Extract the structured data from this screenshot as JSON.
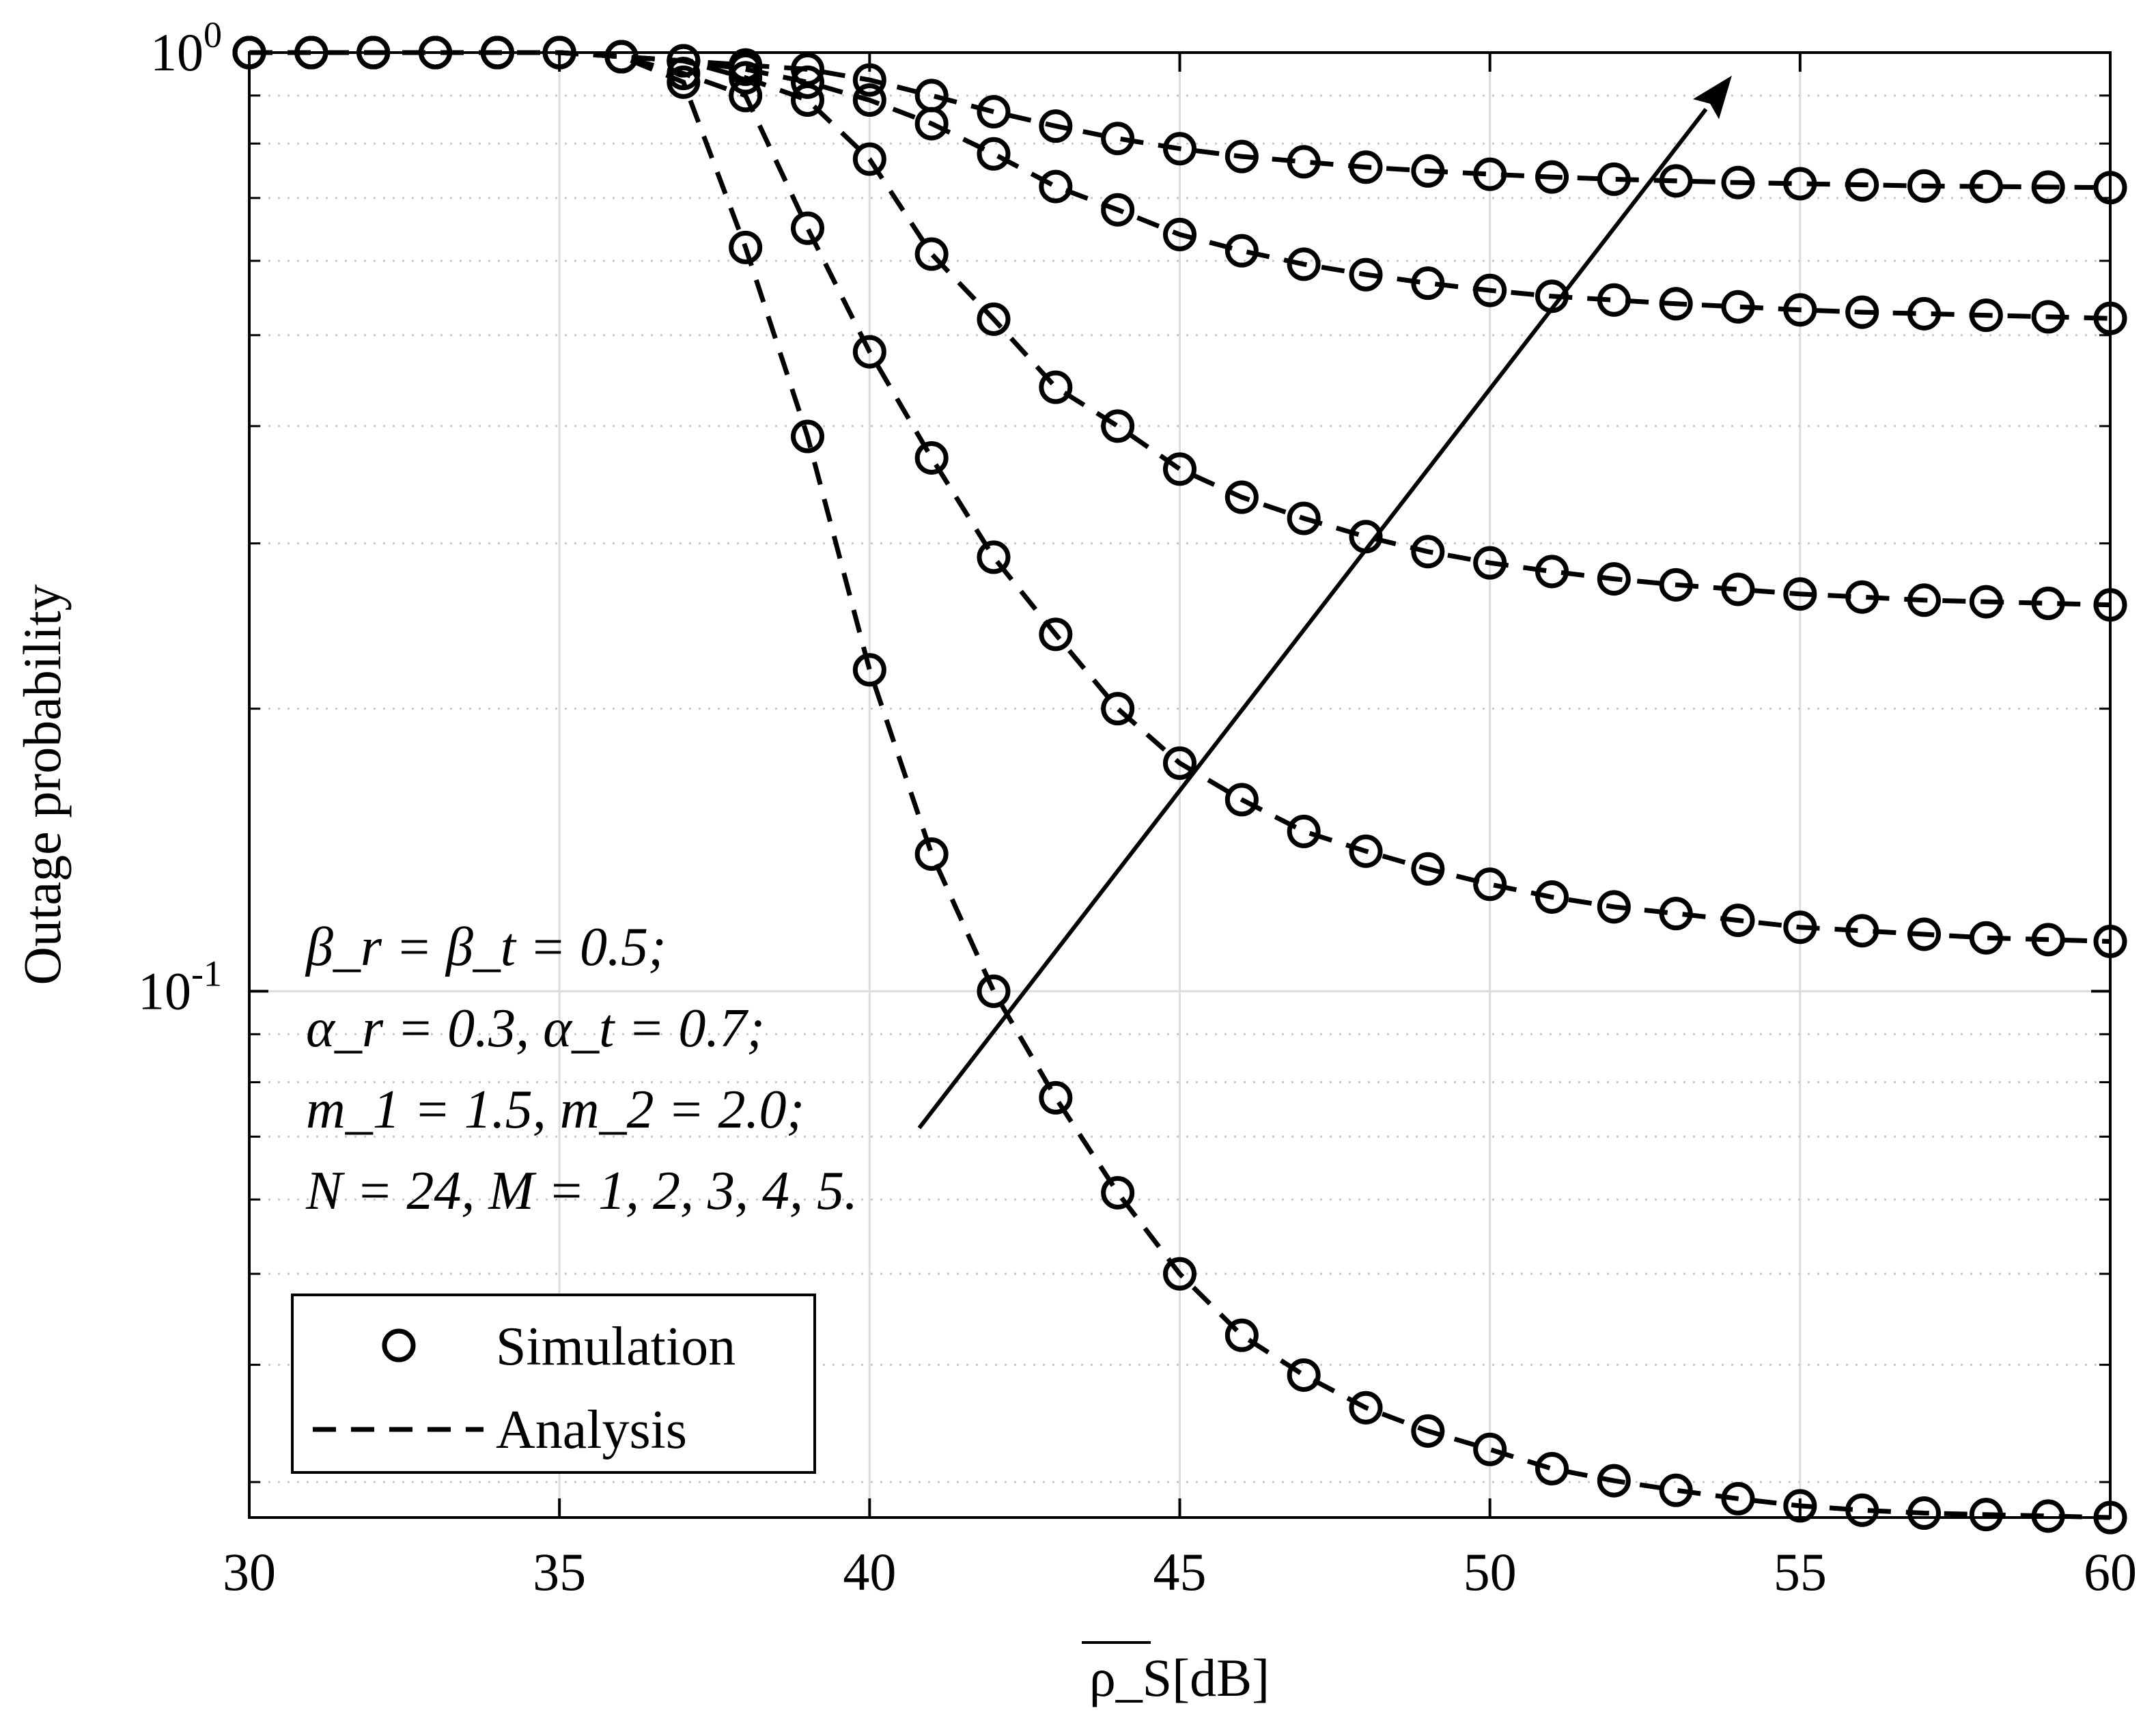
{
  "chart_data": {
    "type": "line",
    "scale": {
      "x": "linear",
      "y": "log"
    },
    "xlabel": "ρ_S[dB]",
    "ylabel": "Outage probability",
    "xlim": [
      30,
      60
    ],
    "ylim": [
      0.0275,
      1.0
    ],
    "grid": true,
    "x_ticks": [
      30,
      35,
      40,
      45,
      50,
      55,
      60
    ],
    "x_tick_labels": [
      "30",
      "35",
      "40",
      "45",
      "50",
      "55",
      "60"
    ],
    "y_ticks": [
      {
        "value": 1,
        "base": "10",
        "exp": "0"
      },
      {
        "value": 0.1,
        "base": "10",
        "exp": "-1"
      }
    ],
    "legend": {
      "position": "bottom-left",
      "entries": [
        {
          "label": "Simulation",
          "marker": "circle",
          "line": "none"
        },
        {
          "label": "Analysis",
          "marker": "none",
          "line": "dashed"
        }
      ]
    },
    "annotations": [
      "β_r = β_t = 0.5;",
      "α_r = 0.3, α_t = 0.7;",
      "m_1 = 1.5, m_2 = 2.0;",
      "N = 24, M = 1, 2, 3, 4, 5."
    ],
    "arrow": {
      "from": [
        40.8,
        0.0715
      ],
      "to": [
        53.9,
        0.945
      ],
      "meaning": "increasing M"
    },
    "x": [
      30,
      31,
      32,
      33,
      34,
      35,
      36,
      37,
      38,
      39,
      40,
      41,
      42,
      43,
      44,
      45,
      46,
      47,
      48,
      49,
      50,
      51,
      52,
      53,
      54,
      55,
      56,
      57,
      58,
      59,
      60
    ],
    "series": [
      {
        "name": "M = 1",
        "values": [
          1.0,
          1.0,
          1.0,
          1.0,
          1.0,
          1.0,
          0.99,
          0.93,
          0.62,
          0.39,
          0.22,
          0.14,
          0.1,
          0.077,
          0.061,
          0.05,
          0.043,
          0.039,
          0.036,
          0.034,
          0.0325,
          0.031,
          0.0301,
          0.0294,
          0.0288,
          0.0283,
          0.028,
          0.0278,
          0.0277,
          0.0276,
          0.0275
        ]
      },
      {
        "name": "M = 2",
        "values": [
          1.0,
          1.0,
          1.0,
          1.0,
          1.0,
          1.0,
          0.99,
          0.95,
          0.9,
          0.65,
          0.48,
          0.37,
          0.29,
          0.24,
          0.2,
          0.175,
          0.16,
          0.148,
          0.141,
          0.135,
          0.13,
          0.126,
          0.123,
          0.121,
          0.119,
          0.117,
          0.116,
          0.115,
          0.114,
          0.1135,
          0.113
        ]
      },
      {
        "name": "M = 3",
        "values": [
          1.0,
          1.0,
          1.0,
          1.0,
          1.0,
          1.0,
          0.99,
          0.98,
          0.94,
          0.89,
          0.77,
          0.61,
          0.52,
          0.44,
          0.4,
          0.36,
          0.336,
          0.319,
          0.305,
          0.294,
          0.286,
          0.28,
          0.275,
          0.271,
          0.268,
          0.265,
          0.263,
          0.261,
          0.26,
          0.259,
          0.258
        ]
      },
      {
        "name": "M = 4",
        "values": [
          1.0,
          1.0,
          1.0,
          1.0,
          1.0,
          1.0,
          0.99,
          0.98,
          0.96,
          0.93,
          0.89,
          0.84,
          0.78,
          0.72,
          0.68,
          0.64,
          0.615,
          0.595,
          0.58,
          0.568,
          0.558,
          0.55,
          0.545,
          0.54,
          0.536,
          0.532,
          0.529,
          0.527,
          0.525,
          0.523,
          0.521
        ]
      },
      {
        "name": "M = 5",
        "values": [
          1.0,
          1.0,
          1.0,
          1.0,
          1.0,
          1.0,
          0.99,
          0.98,
          0.97,
          0.96,
          0.935,
          0.9,
          0.865,
          0.835,
          0.81,
          0.79,
          0.775,
          0.765,
          0.755,
          0.748,
          0.742,
          0.737,
          0.733,
          0.73,
          0.727,
          0.725,
          0.723,
          0.721,
          0.72,
          0.719,
          0.718
        ]
      }
    ]
  }
}
